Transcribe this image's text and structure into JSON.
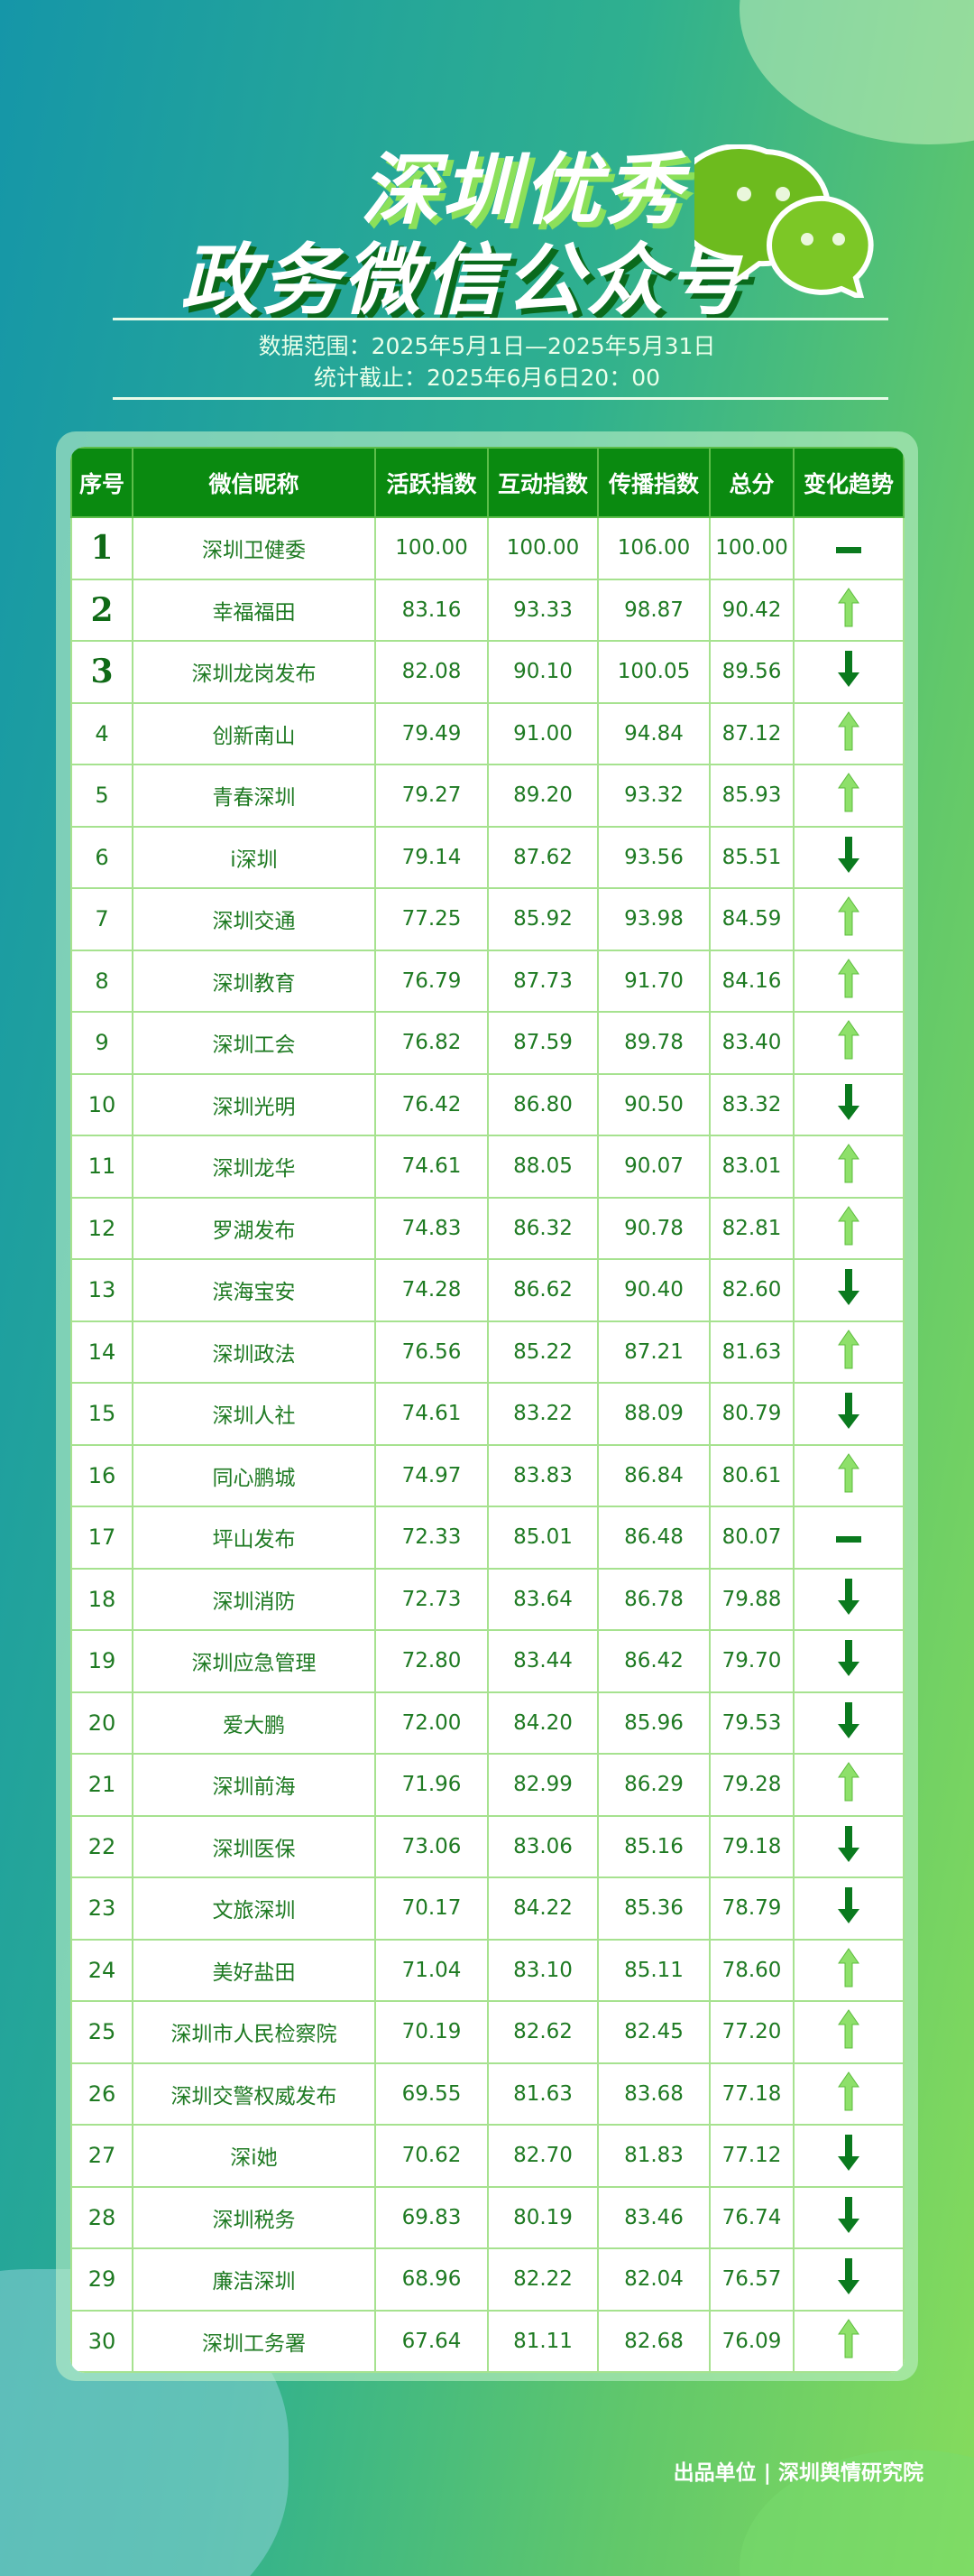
{
  "header": {
    "title_line1": "深圳优秀",
    "title_line2": "政务微信公众号",
    "date_range": "数据范围：2025年5月1日—2025年5月31日",
    "cutoff": "统计截止：2025年6月6日20：00"
  },
  "colors": {
    "header_bg": "#0a8a10",
    "up_arrow": "#8ee06a",
    "down_arrow": "#0a7a1e",
    "text": "#1e7a22"
  },
  "table": {
    "columns": [
      "序号",
      "微信昵称",
      "活跃指数",
      "互动指数",
      "传播指数",
      "总分",
      "变化趋势"
    ],
    "rows": [
      [
        "1",
        "深圳卫健委",
        "100.00",
        "100.00",
        "106.00",
        "100.00",
        "flat"
      ],
      [
        "2",
        "幸福福田",
        "83.16",
        "93.33",
        "98.87",
        "90.42",
        "up"
      ],
      [
        "3",
        "深圳龙岗发布",
        "82.08",
        "90.10",
        "100.05",
        "89.56",
        "down"
      ],
      [
        "4",
        "创新南山",
        "79.49",
        "91.00",
        "94.84",
        "87.12",
        "up"
      ],
      [
        "5",
        "青春深圳",
        "79.27",
        "89.20",
        "93.32",
        "85.93",
        "up"
      ],
      [
        "6",
        "i深圳",
        "79.14",
        "87.62",
        "93.56",
        "85.51",
        "down"
      ],
      [
        "7",
        "深圳交通",
        "77.25",
        "85.92",
        "93.98",
        "84.59",
        "up"
      ],
      [
        "8",
        "深圳教育",
        "76.79",
        "87.73",
        "91.70",
        "84.16",
        "up"
      ],
      [
        "9",
        "深圳工会",
        "76.82",
        "87.59",
        "89.78",
        "83.40",
        "up"
      ],
      [
        "10",
        "深圳光明",
        "76.42",
        "86.80",
        "90.50",
        "83.32",
        "down"
      ],
      [
        "11",
        "深圳龙华",
        "74.61",
        "88.05",
        "90.07",
        "83.01",
        "up"
      ],
      [
        "12",
        "罗湖发布",
        "74.83",
        "86.32",
        "90.78",
        "82.81",
        "up"
      ],
      [
        "13",
        "滨海宝安",
        "74.28",
        "86.62",
        "90.40",
        "82.60",
        "down"
      ],
      [
        "14",
        "深圳政法",
        "76.56",
        "85.22",
        "87.21",
        "81.63",
        "up"
      ],
      [
        "15",
        "深圳人社",
        "74.61",
        "83.22",
        "88.09",
        "80.79",
        "down"
      ],
      [
        "16",
        "同心鹏城",
        "74.97",
        "83.83",
        "86.84",
        "80.61",
        "up"
      ],
      [
        "17",
        "坪山发布",
        "72.33",
        "85.01",
        "86.48",
        "80.07",
        "flat"
      ],
      [
        "18",
        "深圳消防",
        "72.73",
        "83.64",
        "86.78",
        "79.88",
        "down"
      ],
      [
        "19",
        "深圳应急管理",
        "72.80",
        "83.44",
        "86.42",
        "79.70",
        "down"
      ],
      [
        "20",
        "爱大鹏",
        "72.00",
        "84.20",
        "85.96",
        "79.53",
        "down"
      ],
      [
        "21",
        "深圳前海",
        "71.96",
        "82.99",
        "86.29",
        "79.28",
        "up"
      ],
      [
        "22",
        "深圳医保",
        "73.06",
        "83.06",
        "85.16",
        "79.18",
        "down"
      ],
      [
        "23",
        "文旅深圳",
        "70.17",
        "84.22",
        "85.36",
        "78.79",
        "down"
      ],
      [
        "24",
        "美好盐田",
        "71.04",
        "83.10",
        "85.11",
        "78.60",
        "up"
      ],
      [
        "25",
        "深圳市人民检察院",
        "70.19",
        "82.62",
        "82.45",
        "77.20",
        "up"
      ],
      [
        "26",
        "深圳交警权威发布",
        "69.55",
        "81.63",
        "83.68",
        "77.18",
        "up"
      ],
      [
        "27",
        "深i她",
        "70.62",
        "82.70",
        "81.83",
        "77.12",
        "down"
      ],
      [
        "28",
        "深圳税务",
        "69.83",
        "80.19",
        "83.46",
        "76.74",
        "down"
      ],
      [
        "29",
        "廉洁深圳",
        "68.96",
        "82.22",
        "82.04",
        "76.57",
        "down"
      ],
      [
        "30",
        "深圳工务署",
        "67.64",
        "81.11",
        "82.68",
        "76.09",
        "up"
      ]
    ]
  },
  "footer": {
    "text": "出品单位 | 深圳舆情研究院"
  }
}
